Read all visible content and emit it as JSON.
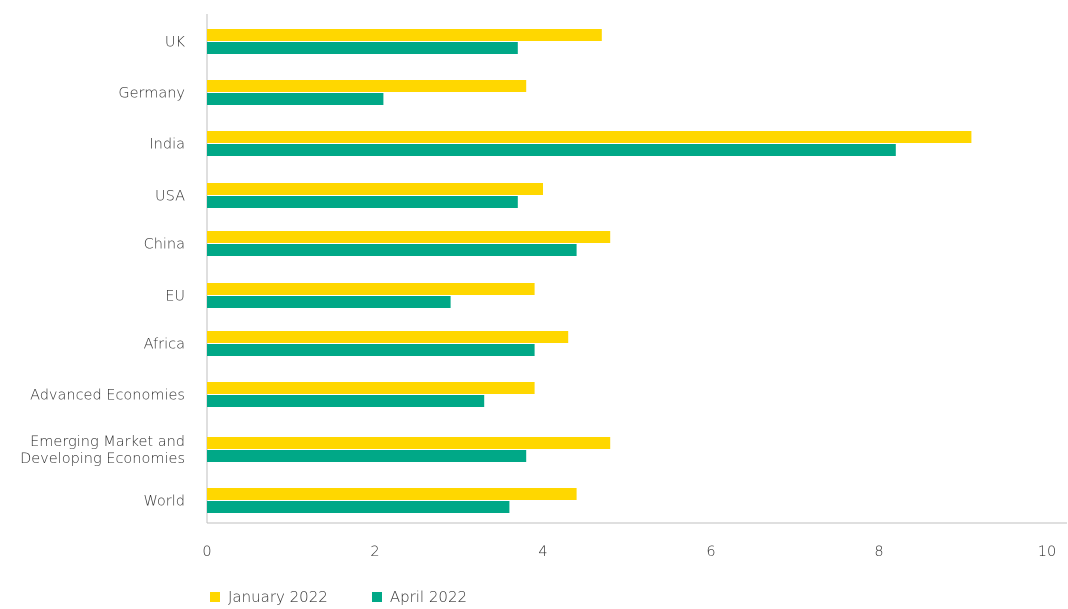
{
  "chart_data": {
    "type": "bar",
    "orientation": "horizontal",
    "categories": [
      "UK",
      "Germany",
      "India",
      "USA",
      "China",
      "EU",
      "Africa",
      "Advanced Economies",
      "Emerging Market and Developing Economies",
      "World"
    ],
    "category_display": [
      [
        "UK"
      ],
      [
        "Germany"
      ],
      [
        "India"
      ],
      [
        "USA"
      ],
      [
        "China"
      ],
      [
        "EU"
      ],
      [
        "Africa"
      ],
      [
        "Advanced Economies"
      ],
      [
        "Emerging Market and",
        "Developing Economies"
      ],
      [
        "World"
      ]
    ],
    "series": [
      {
        "name": "January 2022",
        "color": "#FFD700",
        "values": [
          4.7,
          3.8,
          9.1,
          4.0,
          4.8,
          3.9,
          4.3,
          3.9,
          4.8,
          4.4
        ]
      },
      {
        "name": "April 2022",
        "color": "#00A887",
        "values": [
          3.7,
          2.1,
          8.2,
          3.7,
          4.4,
          2.9,
          3.9,
          3.3,
          3.8,
          3.6
        ]
      }
    ],
    "title": "",
    "xlabel": "",
    "ylabel": "",
    "xlim": [
      0,
      10
    ],
    "xticks": [
      0,
      2,
      4,
      6,
      8,
      10
    ],
    "grid": false,
    "legend_position": "bottom-left"
  }
}
